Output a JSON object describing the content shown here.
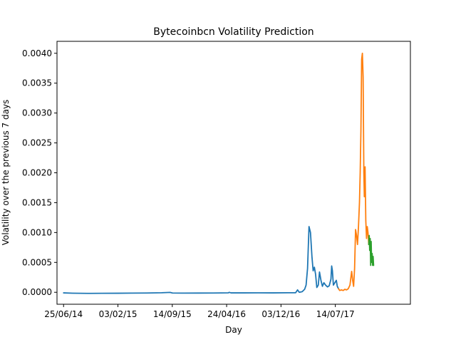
{
  "chart_data": {
    "type": "line",
    "title": "Bytecoinbcn Volatility Prediction",
    "xlabel": "Day",
    "ylabel": "Volatility over the previous 7 days",
    "x_ticks": [
      "25/06/14",
      "03/02/15",
      "14/09/15",
      "24/04/16",
      "03/12/16",
      "14/07/17"
    ],
    "y_ticks": [
      "0.0000",
      "0.0005",
      "0.0010",
      "0.0015",
      "0.0020",
      "0.0025",
      "0.0030",
      "0.0035",
      "0.0040"
    ],
    "xlim": [
      "2014-05-29",
      "2018-05-18"
    ],
    "ylim": [
      -0.0002,
      0.0042
    ],
    "grid": false,
    "legend": "none",
    "series": [
      {
        "color": "#1f77b4",
        "points": [
          [
            "2014-06-25",
            -1e-05
          ],
          [
            "2014-08-01",
            -1.5e-05
          ],
          [
            "2014-10-01",
            -1.8e-05
          ],
          [
            "2014-12-01",
            -1.7e-05
          ],
          [
            "2015-02-01",
            -1.6e-05
          ],
          [
            "2015-04-01",
            -1.4e-05
          ],
          [
            "2015-06-01",
            -1.2e-05
          ],
          [
            "2015-08-01",
            -8e-06
          ],
          [
            "2015-09-05",
            -2e-06
          ],
          [
            "2015-09-15",
            -1.2e-05
          ],
          [
            "2015-11-01",
            -1.4e-05
          ],
          [
            "2016-01-01",
            -1.3e-05
          ],
          [
            "2016-03-01",
            -1.2e-05
          ],
          [
            "2016-05-01",
            -9e-06
          ],
          [
            "2016-05-05",
            -1e-06
          ],
          [
            "2016-05-12",
            -1e-05
          ],
          [
            "2016-07-01",
            -1e-05
          ],
          [
            "2016-09-01",
            -9e-06
          ],
          [
            "2016-11-01",
            -1e-05
          ],
          [
            "2017-01-01",
            -8e-06
          ],
          [
            "2017-02-01",
            -8e-06
          ],
          [
            "2017-02-09",
            4e-05
          ],
          [
            "2017-02-16",
            0.0
          ],
          [
            "2017-02-28",
            1e-05
          ],
          [
            "2017-03-10",
            5e-05
          ],
          [
            "2017-03-16",
            0.00012
          ],
          [
            "2017-03-22",
            0.0004
          ],
          [
            "2017-03-28",
            0.0011
          ],
          [
            "2017-04-03",
            0.001
          ],
          [
            "2017-04-09",
            0.0006
          ],
          [
            "2017-04-14",
            0.00036
          ],
          [
            "2017-04-19",
            0.00042
          ],
          [
            "2017-04-24",
            0.0003
          ],
          [
            "2017-04-29",
            8e-05
          ],
          [
            "2017-05-05",
            0.00012
          ],
          [
            "2017-05-10",
            0.00034
          ],
          [
            "2017-05-16",
            0.0002
          ],
          [
            "2017-05-22",
            0.0001
          ],
          [
            "2017-05-28",
            0.00016
          ],
          [
            "2017-06-04",
            0.00012
          ],
          [
            "2017-06-12",
            9e-05
          ],
          [
            "2017-06-19",
            0.00011
          ],
          [
            "2017-06-26",
            0.00022
          ],
          [
            "2017-06-29",
            0.00044
          ],
          [
            "2017-07-02",
            0.00036
          ],
          [
            "2017-07-06",
            0.00012
          ],
          [
            "2017-07-12",
            0.00016
          ],
          [
            "2017-07-18",
            0.0002
          ],
          [
            "2017-07-22",
            0.0001
          ],
          [
            "2017-07-27",
            6e-05
          ]
        ]
      },
      {
        "color": "#ff7f0e",
        "points": [
          [
            "2017-07-27",
            6e-05
          ],
          [
            "2017-08-01",
            3e-05
          ],
          [
            "2017-08-08",
            4e-05
          ],
          [
            "2017-08-15",
            3e-05
          ],
          [
            "2017-08-22",
            5e-05
          ],
          [
            "2017-08-29",
            4e-05
          ],
          [
            "2017-09-05",
            6e-05
          ],
          [
            "2017-09-12",
            0.00012
          ],
          [
            "2017-09-19",
            0.00035
          ],
          [
            "2017-09-23",
            0.0002
          ],
          [
            "2017-09-27",
            0.0001
          ],
          [
            "2017-10-01",
            0.0004
          ],
          [
            "2017-10-05",
            0.00105
          ],
          [
            "2017-10-09",
            0.00095
          ],
          [
            "2017-10-13",
            0.0008
          ],
          [
            "2017-10-17",
            0.0011
          ],
          [
            "2017-10-21",
            0.0015
          ],
          [
            "2017-10-24",
            0.002
          ],
          [
            "2017-10-27",
            0.0027
          ],
          [
            "2017-10-30",
            0.0039
          ],
          [
            "2017-11-02",
            0.004
          ],
          [
            "2017-11-05",
            0.0036
          ],
          [
            "2017-11-08",
            0.002
          ],
          [
            "2017-11-10",
            0.0016
          ],
          [
            "2017-11-13",
            0.0021
          ],
          [
            "2017-11-16",
            0.0012
          ],
          [
            "2017-11-19",
            0.0009
          ],
          [
            "2017-11-22",
            0.0011
          ],
          [
            "2017-11-25",
            0.001
          ],
          [
            "2017-11-28",
            0.0008
          ]
        ]
      },
      {
        "color": "#2ca02c",
        "points": [
          [
            "2017-11-28",
            0.0008
          ],
          [
            "2017-11-30",
            0.00095
          ],
          [
            "2017-12-02",
            0.0007
          ],
          [
            "2017-12-04",
            0.0009
          ],
          [
            "2017-12-06",
            0.00045
          ],
          [
            "2017-12-08",
            0.00085
          ],
          [
            "2017-12-10",
            0.0005
          ],
          [
            "2017-12-12",
            0.00065
          ],
          [
            "2017-12-14",
            0.00045
          ],
          [
            "2017-12-16",
            0.0006
          ],
          [
            "2017-12-18",
            0.00045
          ]
        ]
      }
    ]
  }
}
